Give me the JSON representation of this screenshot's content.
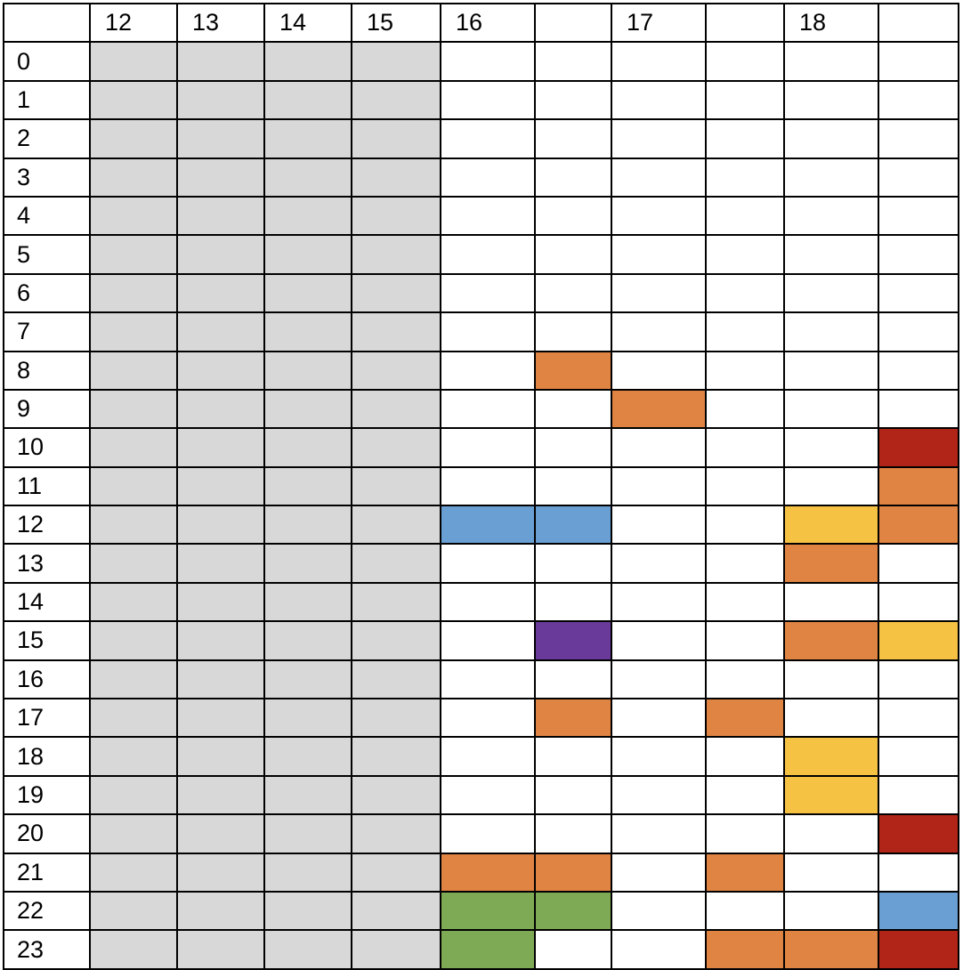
{
  "chart_data": {
    "type": "heatmap",
    "title": "",
    "xlabel": "",
    "ylabel": "",
    "column_headers": [
      "12",
      "13",
      "14",
      "15",
      "16",
      "",
      "17",
      "",
      "18",
      ""
    ],
    "row_labels": [
      "0",
      "1",
      "2",
      "3",
      "4",
      "5",
      "6",
      "7",
      "8",
      "9",
      "10",
      "11",
      "12",
      "13",
      "14",
      "15",
      "16",
      "17",
      "18",
      "19",
      "20",
      "21",
      "22",
      "23"
    ],
    "colors": {
      "empty": "#ffffff",
      "unavailable": "#d8d8d8",
      "orange": "#e08443",
      "red": "#b02518",
      "blue": "#6a9fd3",
      "yellow": "#f6c244",
      "purple": "#6a3a9a",
      "green": "#7faa55"
    },
    "cells": [
      [
        "unavailable",
        "unavailable",
        "unavailable",
        "unavailable",
        "empty",
        "empty",
        "empty",
        "empty",
        "empty",
        "empty"
      ],
      [
        "unavailable",
        "unavailable",
        "unavailable",
        "unavailable",
        "empty",
        "empty",
        "empty",
        "empty",
        "empty",
        "empty"
      ],
      [
        "unavailable",
        "unavailable",
        "unavailable",
        "unavailable",
        "empty",
        "empty",
        "empty",
        "empty",
        "empty",
        "empty"
      ],
      [
        "unavailable",
        "unavailable",
        "unavailable",
        "unavailable",
        "empty",
        "empty",
        "empty",
        "empty",
        "empty",
        "empty"
      ],
      [
        "unavailable",
        "unavailable",
        "unavailable",
        "unavailable",
        "empty",
        "empty",
        "empty",
        "empty",
        "empty",
        "empty"
      ],
      [
        "unavailable",
        "unavailable",
        "unavailable",
        "unavailable",
        "empty",
        "empty",
        "empty",
        "empty",
        "empty",
        "empty"
      ],
      [
        "unavailable",
        "unavailable",
        "unavailable",
        "unavailable",
        "empty",
        "empty",
        "empty",
        "empty",
        "empty",
        "empty"
      ],
      [
        "unavailable",
        "unavailable",
        "unavailable",
        "unavailable",
        "empty",
        "empty",
        "empty",
        "empty",
        "empty",
        "empty"
      ],
      [
        "unavailable",
        "unavailable",
        "unavailable",
        "unavailable",
        "empty",
        "orange",
        "empty",
        "empty",
        "empty",
        "empty"
      ],
      [
        "unavailable",
        "unavailable",
        "unavailable",
        "unavailable",
        "empty",
        "empty",
        "orange",
        "empty",
        "empty",
        "empty"
      ],
      [
        "unavailable",
        "unavailable",
        "unavailable",
        "unavailable",
        "empty",
        "empty",
        "empty",
        "empty",
        "empty",
        "red"
      ],
      [
        "unavailable",
        "unavailable",
        "unavailable",
        "unavailable",
        "empty",
        "empty",
        "empty",
        "empty",
        "empty",
        "orange"
      ],
      [
        "unavailable",
        "unavailable",
        "unavailable",
        "unavailable",
        "blue",
        "blue",
        "empty",
        "empty",
        "yellow",
        "orange"
      ],
      [
        "unavailable",
        "unavailable",
        "unavailable",
        "unavailable",
        "empty",
        "empty",
        "empty",
        "empty",
        "orange",
        "empty"
      ],
      [
        "unavailable",
        "unavailable",
        "unavailable",
        "unavailable",
        "empty",
        "empty",
        "empty",
        "empty",
        "empty",
        "empty"
      ],
      [
        "unavailable",
        "unavailable",
        "unavailable",
        "unavailable",
        "empty",
        "purple",
        "empty",
        "empty",
        "orange",
        "yellow"
      ],
      [
        "unavailable",
        "unavailable",
        "unavailable",
        "unavailable",
        "empty",
        "empty",
        "empty",
        "empty",
        "empty",
        "empty"
      ],
      [
        "unavailable",
        "unavailable",
        "unavailable",
        "unavailable",
        "empty",
        "orange",
        "empty",
        "orange",
        "empty",
        "empty"
      ],
      [
        "unavailable",
        "unavailable",
        "unavailable",
        "unavailable",
        "empty",
        "empty",
        "empty",
        "empty",
        "yellow",
        "empty"
      ],
      [
        "unavailable",
        "unavailable",
        "unavailable",
        "unavailable",
        "empty",
        "empty",
        "empty",
        "empty",
        "yellow",
        "empty"
      ],
      [
        "unavailable",
        "unavailable",
        "unavailable",
        "unavailable",
        "empty",
        "empty",
        "empty",
        "empty",
        "empty",
        "red"
      ],
      [
        "unavailable",
        "unavailable",
        "unavailable",
        "unavailable",
        "orange",
        "orange",
        "empty",
        "orange",
        "empty",
        "empty"
      ],
      [
        "unavailable",
        "unavailable",
        "unavailable",
        "unavailable",
        "green",
        "green",
        "empty",
        "empty",
        "empty",
        "blue"
      ],
      [
        "unavailable",
        "unavailable",
        "unavailable",
        "unavailable",
        "green",
        "empty",
        "empty",
        "orange",
        "orange",
        "red"
      ]
    ]
  }
}
